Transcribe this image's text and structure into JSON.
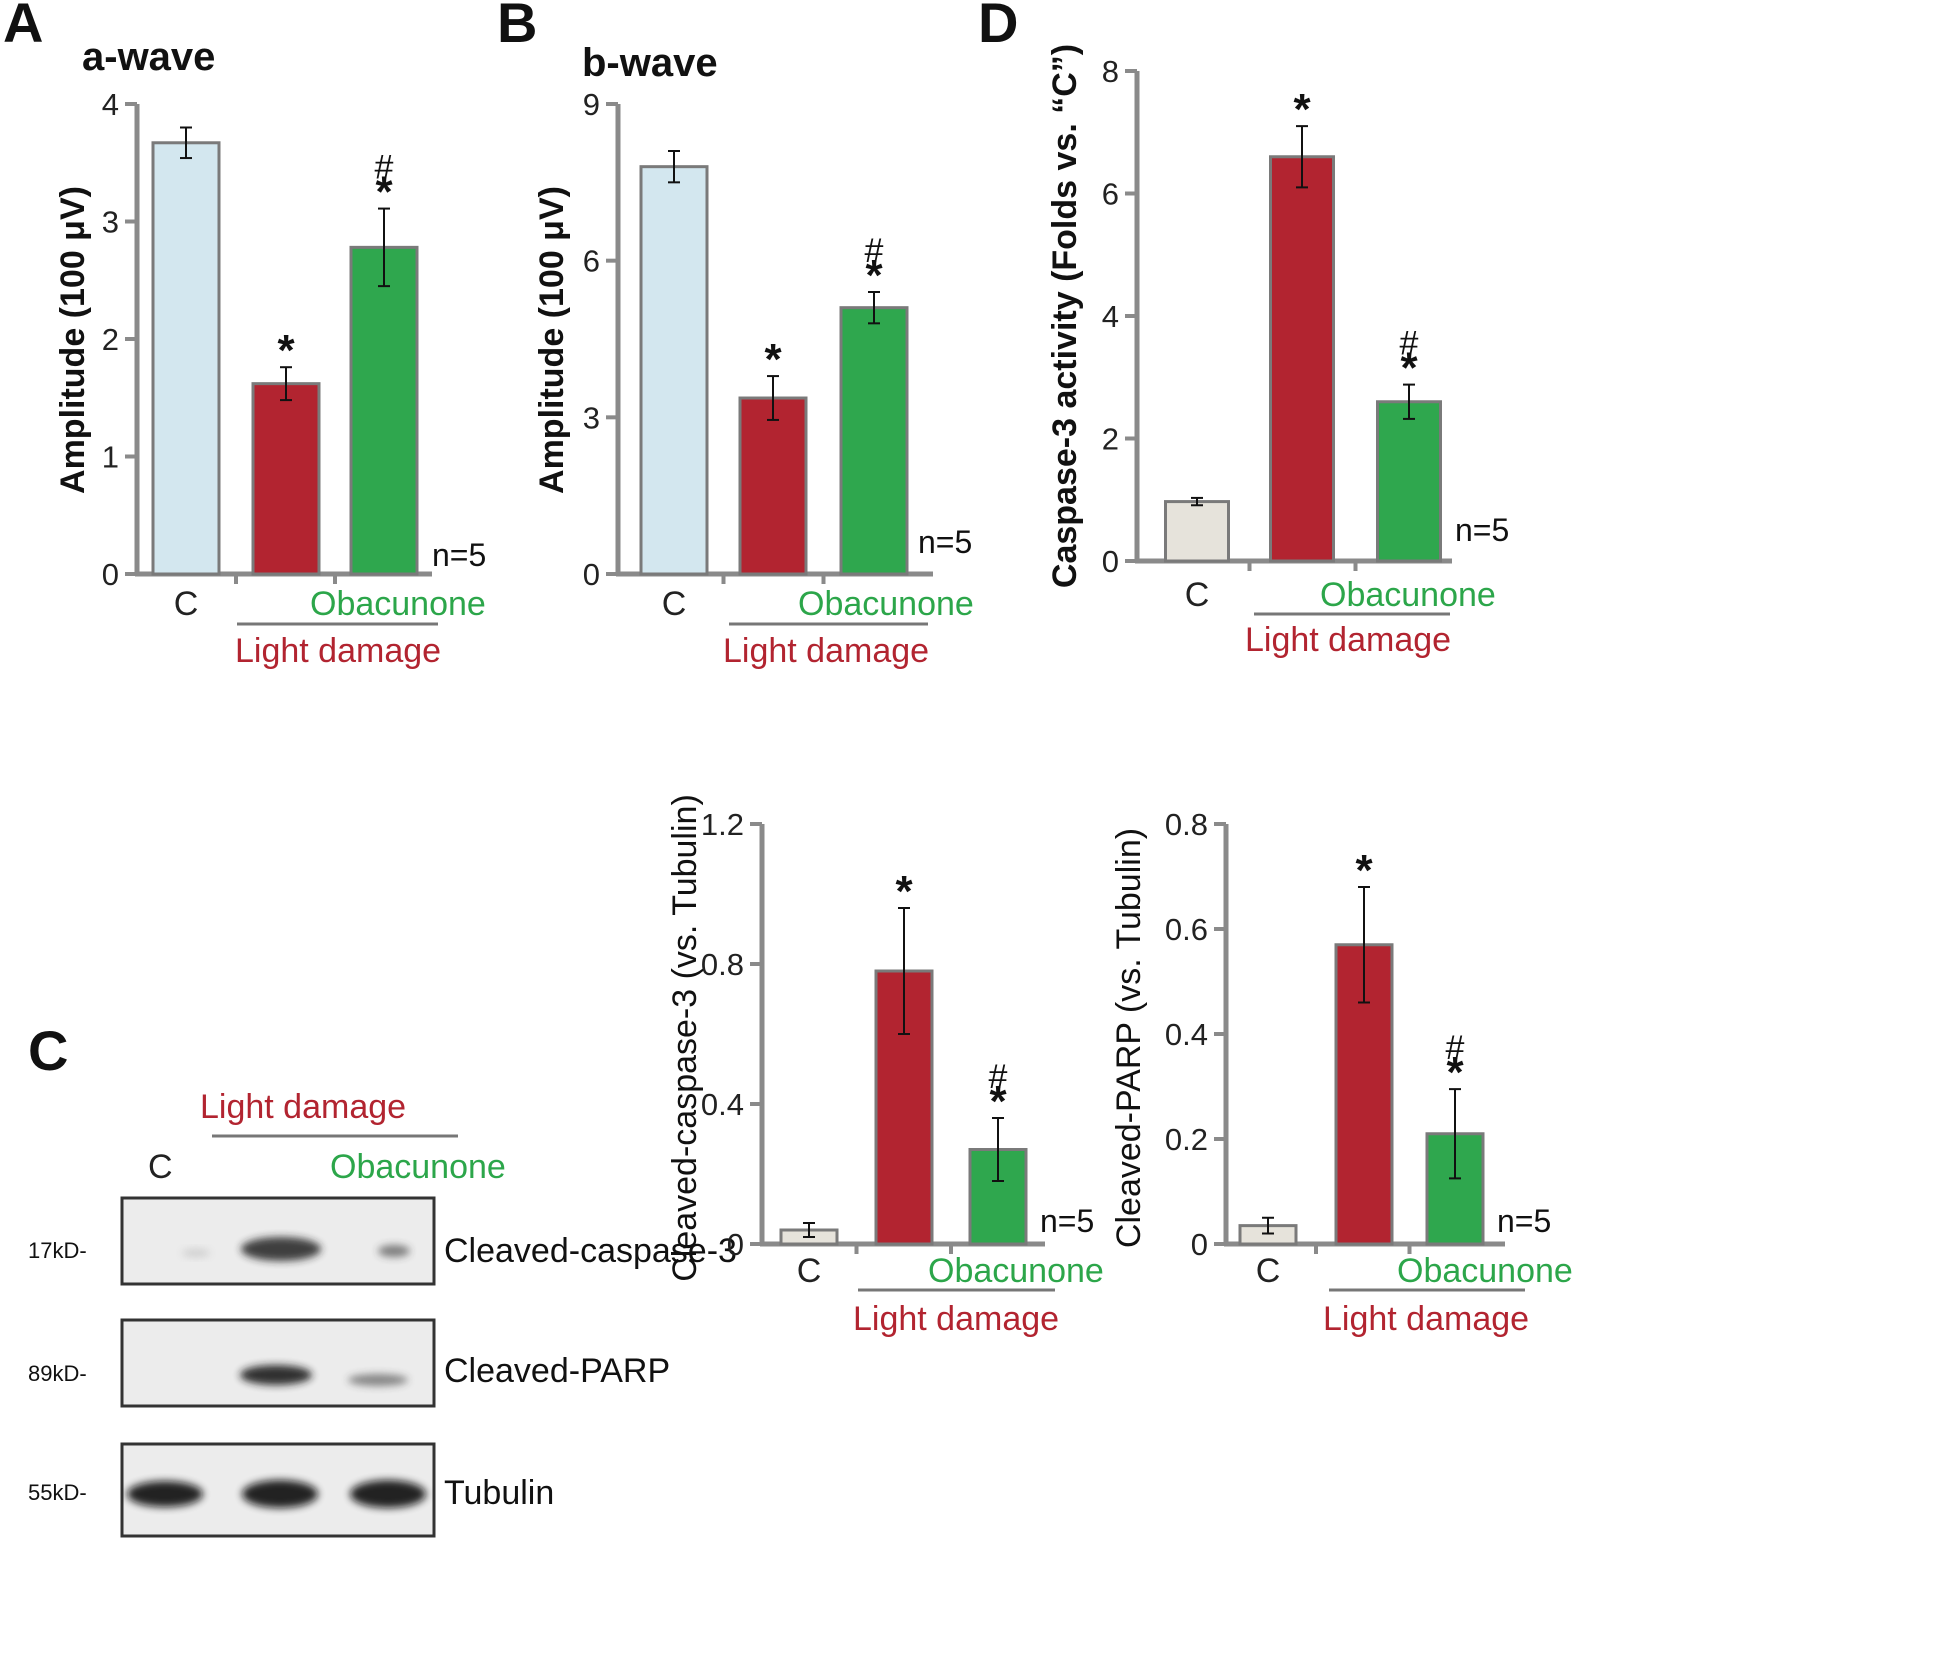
{
  "colors": {
    "control_light_blue": "#d3e7ef",
    "control_beige": "#e6e3db",
    "light_damage_red": "#b22430",
    "obacunone_green": "#2fa74e",
    "axis_gray": "#8a8a8a"
  },
  "annotations": {
    "light_damage": "Light damage",
    "obacunone": "Obacunone",
    "n": "n=5",
    "asterisk": "*",
    "hash": "#"
  },
  "western_blot": {
    "letter": "C",
    "lane_labels": [
      "C",
      "Light damage",
      "Obacunone"
    ],
    "rows": [
      {
        "mw": "17kD-",
        "label": "Cleaved-caspase-3"
      },
      {
        "mw": "89kD-",
        "label": "Cleaved-PARP"
      },
      {
        "mw": "55kD-",
        "label": "Tubulin"
      }
    ]
  },
  "chart_data": [
    {
      "letter": "A",
      "type": "bar",
      "title": "a-wave",
      "ylabel": "Amplitude (100 μV)",
      "categories": [
        "C",
        "",
        ""
      ],
      "values": [
        3.67,
        1.62,
        2.78
      ],
      "errors": [
        0.13,
        0.14,
        0.33
      ],
      "ylim": [
        0,
        4
      ],
      "yticks": [
        0,
        1,
        2,
        3,
        4
      ],
      "tick_labels": [
        "0",
        "1",
        "2",
        "3",
        "4"
      ],
      "significance": [
        "",
        "*",
        "*#"
      ]
    },
    {
      "letter": "B",
      "type": "bar",
      "title": "b-wave",
      "ylabel": "Amplitude (100 μV)",
      "categories": [
        "C",
        "",
        ""
      ],
      "values": [
        7.8,
        3.37,
        5.1
      ],
      "errors": [
        0.3,
        0.42,
        0.3
      ],
      "ylim": [
        0,
        9
      ],
      "yticks": [
        0,
        3,
        6,
        9
      ],
      "tick_labels": [
        "0",
        "3",
        "6",
        "9"
      ],
      "significance": [
        "",
        "*",
        "*#"
      ]
    },
    {
      "letter": "D",
      "type": "bar",
      "title": "",
      "ylabel": "Caspase-3 activity (Folds vs. “C”)",
      "categories": [
        "C",
        "",
        ""
      ],
      "values": [
        0.97,
        6.6,
        2.6
      ],
      "errors": [
        0.06,
        0.5,
        0.28
      ],
      "ylim": [
        0,
        8
      ],
      "yticks": [
        0,
        2,
        4,
        6,
        8
      ],
      "tick_labels": [
        "0",
        "2",
        "4",
        "6",
        "8"
      ],
      "significance": [
        "",
        "*",
        "*#"
      ]
    },
    {
      "letter": "",
      "type": "bar",
      "title": "",
      "ylabel": "Cleaved-caspase-3 (vs. Tubulin)",
      "categories": [
        "C",
        "",
        ""
      ],
      "values": [
        0.04,
        0.78,
        0.27
      ],
      "errors": [
        0.02,
        0.18,
        0.09
      ],
      "ylim": [
        0,
        1.2
      ],
      "yticks": [
        0,
        0.4,
        0.8,
        1.2
      ],
      "tick_labels": [
        "0",
        "0.4",
        "0.8",
        "1.2"
      ],
      "significance": [
        "",
        "*",
        "*#"
      ]
    },
    {
      "letter": "",
      "type": "bar",
      "title": "",
      "ylabel": "Cleaved-PARP (vs. Tubulin)",
      "categories": [
        "C",
        "",
        ""
      ],
      "values": [
        0.035,
        0.57,
        0.21
      ],
      "errors": [
        0.015,
        0.11,
        0.085
      ],
      "ylim": [
        0,
        0.8
      ],
      "yticks": [
        0,
        0.2,
        0.4,
        0.6,
        0.8
      ],
      "tick_labels": [
        "0",
        "0.2",
        "0.4",
        "0.6",
        "0.8"
      ],
      "significance": [
        "",
        "*",
        "*#"
      ]
    }
  ]
}
